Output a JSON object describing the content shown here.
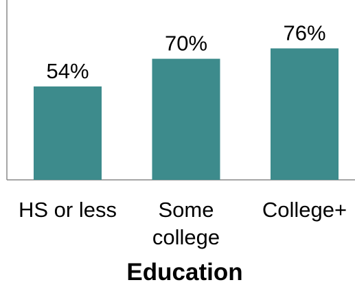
{
  "chart_data": {
    "type": "bar",
    "categories": [
      "HS or less",
      "Some college",
      "College+"
    ],
    "category_label_lines": [
      [
        "HS or less"
      ],
      [
        "Some",
        "college"
      ],
      [
        "College+"
      ]
    ],
    "values": [
      54,
      70,
      76
    ],
    "value_labels": [
      "54%",
      "70%",
      "76%"
    ],
    "title": "",
    "xlabel": "Education",
    "ylabel": "",
    "ylim": [
      0,
      100
    ],
    "grid": false,
    "legend": "none",
    "bar_color": "#3d8b8c",
    "axis_color": "#888888"
  }
}
